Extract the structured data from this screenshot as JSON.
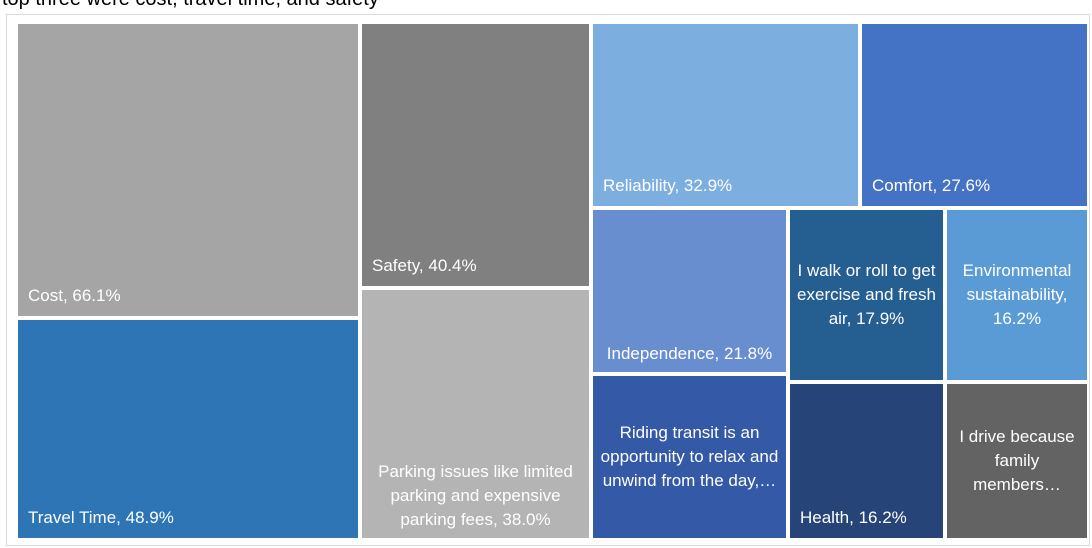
{
  "caption": "top three were cost, travel time, and safety",
  "chart_data": {
    "type": "treemap",
    "categories": [
      "Cost",
      "Travel Time",
      "Safety",
      "Parking issues like limited parking and expensive parking fees",
      "Reliability",
      "Comfort",
      "Independence",
      "Riding transit is an opportunity to relax and unwind from the day",
      "I walk or roll to get exercise and fresh air",
      "Environmental sustainability",
      "Health",
      "I drive because family members"
    ],
    "values": [
      66.1,
      48.9,
      40.4,
      38.0,
      32.9,
      27.6,
      21.8,
      21.5,
      17.9,
      16.2,
      16.2,
      14.7
    ],
    "value_labels": [
      "Cost, 66.1%",
      "Travel Time, 48.9%",
      "Safety, 40.4%",
      "Parking issues like limited parking and expensive parking fees, 38.0%",
      "Reliability, 32.9%",
      "Comfort, 27.6%",
      "Independence, 21.8%",
      "Riding transit is an opportunity to relax and unwind from the day,…",
      "I walk or roll to get exercise and fresh air, 17.9%",
      "Environmental sustainability, 16.2%",
      "Health, 16.2%",
      "I drive because family members…"
    ],
    "colors": [
      "#a5a5a5",
      "#2e75b6",
      "#808080",
      "#b4b4b4",
      "#7cafe0",
      "#4472c4",
      "#698ed0",
      "#3459a6",
      "#255e91",
      "#5b9bd5",
      "#264478",
      "#636363"
    ]
  }
}
